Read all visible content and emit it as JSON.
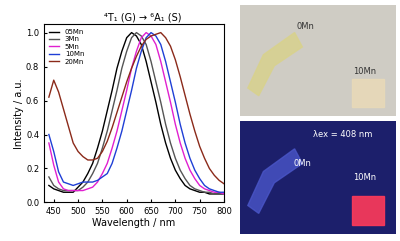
{
  "chart_data": {
    "type": "line",
    "x_label": "Wavelength / nm",
    "y_label": "Intensity / a.u.",
    "annotations": [
      "⁴T₁ (G) → ⁶A₁ (S)"
    ],
    "x": [
      440,
      450,
      460,
      470,
      480,
      490,
      500,
      510,
      520,
      530,
      540,
      550,
      560,
      570,
      580,
      590,
      600,
      610,
      620,
      630,
      640,
      650,
      660,
      670,
      680,
      690,
      700,
      710,
      720,
      730,
      740,
      750,
      760,
      770,
      780,
      790,
      800
    ],
    "series": [
      {
        "name": "05Mn",
        "color": "#000000",
        "values": [
          0.1,
          0.08,
          0.07,
          0.06,
          0.06,
          0.06,
          0.09,
          0.12,
          0.17,
          0.23,
          0.32,
          0.42,
          0.54,
          0.66,
          0.79,
          0.89,
          0.97,
          1.0,
          0.98,
          0.93,
          0.83,
          0.71,
          0.59,
          0.46,
          0.35,
          0.26,
          0.19,
          0.14,
          0.1,
          0.08,
          0.07,
          0.06,
          0.06,
          0.05,
          0.05,
          0.05,
          0.05
        ]
      },
      {
        "name": "3Mn",
        "color": "#555555",
        "values": [
          0.15,
          0.1,
          0.08,
          0.07,
          0.07,
          0.07,
          0.07,
          0.09,
          0.12,
          0.17,
          0.23,
          0.32,
          0.42,
          0.54,
          0.66,
          0.79,
          0.89,
          0.97,
          1.0,
          0.98,
          0.93,
          0.83,
          0.71,
          0.59,
          0.46,
          0.35,
          0.26,
          0.19,
          0.14,
          0.1,
          0.08,
          0.07,
          0.06,
          0.06,
          0.05,
          0.05,
          0.05
        ]
      },
      {
        "name": "5Mn",
        "color": "#e020d0",
        "values": [
          0.35,
          0.22,
          0.12,
          0.08,
          0.07,
          0.07,
          0.07,
          0.07,
          0.08,
          0.09,
          0.12,
          0.17,
          0.23,
          0.32,
          0.42,
          0.54,
          0.66,
          0.79,
          0.89,
          0.97,
          1.0,
          0.98,
          0.93,
          0.83,
          0.71,
          0.59,
          0.46,
          0.35,
          0.26,
          0.19,
          0.14,
          0.1,
          0.08,
          0.07,
          0.06,
          0.06,
          0.05
        ]
      },
      {
        "name": "10Mn",
        "color": "#1f3fd6",
        "values": [
          0.4,
          0.3,
          0.18,
          0.12,
          0.11,
          0.1,
          0.11,
          0.12,
          0.12,
          0.12,
          0.13,
          0.15,
          0.17,
          0.23,
          0.32,
          0.42,
          0.54,
          0.66,
          0.79,
          0.89,
          0.97,
          1.0,
          0.98,
          0.93,
          0.83,
          0.71,
          0.59,
          0.46,
          0.35,
          0.26,
          0.19,
          0.14,
          0.1,
          0.08,
          0.07,
          0.06,
          0.06
        ]
      },
      {
        "name": "20Mn",
        "color": "#8b2a1a",
        "values": [
          0.62,
          0.72,
          0.65,
          0.55,
          0.45,
          0.35,
          0.3,
          0.27,
          0.25,
          0.25,
          0.26,
          0.3,
          0.36,
          0.44,
          0.53,
          0.62,
          0.71,
          0.79,
          0.86,
          0.92,
          0.96,
          0.98,
          0.99,
          1.0,
          0.97,
          0.92,
          0.84,
          0.74,
          0.63,
          0.52,
          0.42,
          0.33,
          0.26,
          0.2,
          0.16,
          0.13,
          0.11
        ]
      }
    ],
    "xlim": [
      430,
      800
    ],
    "xticks": [
      450,
      500,
      550,
      600,
      650,
      700,
      750,
      800
    ],
    "ylim": [
      0,
      1.05
    ],
    "yticks": [
      0.0,
      0.2,
      0.4,
      0.6,
      0.8,
      1.0
    ],
    "legend": "upper left"
  },
  "photos": [
    {
      "labels": [
        "0Mn",
        "10Mn"
      ]
    },
    {
      "labels": [
        "0Mn",
        "λex = 408 nm",
        "10Mn"
      ]
    }
  ]
}
